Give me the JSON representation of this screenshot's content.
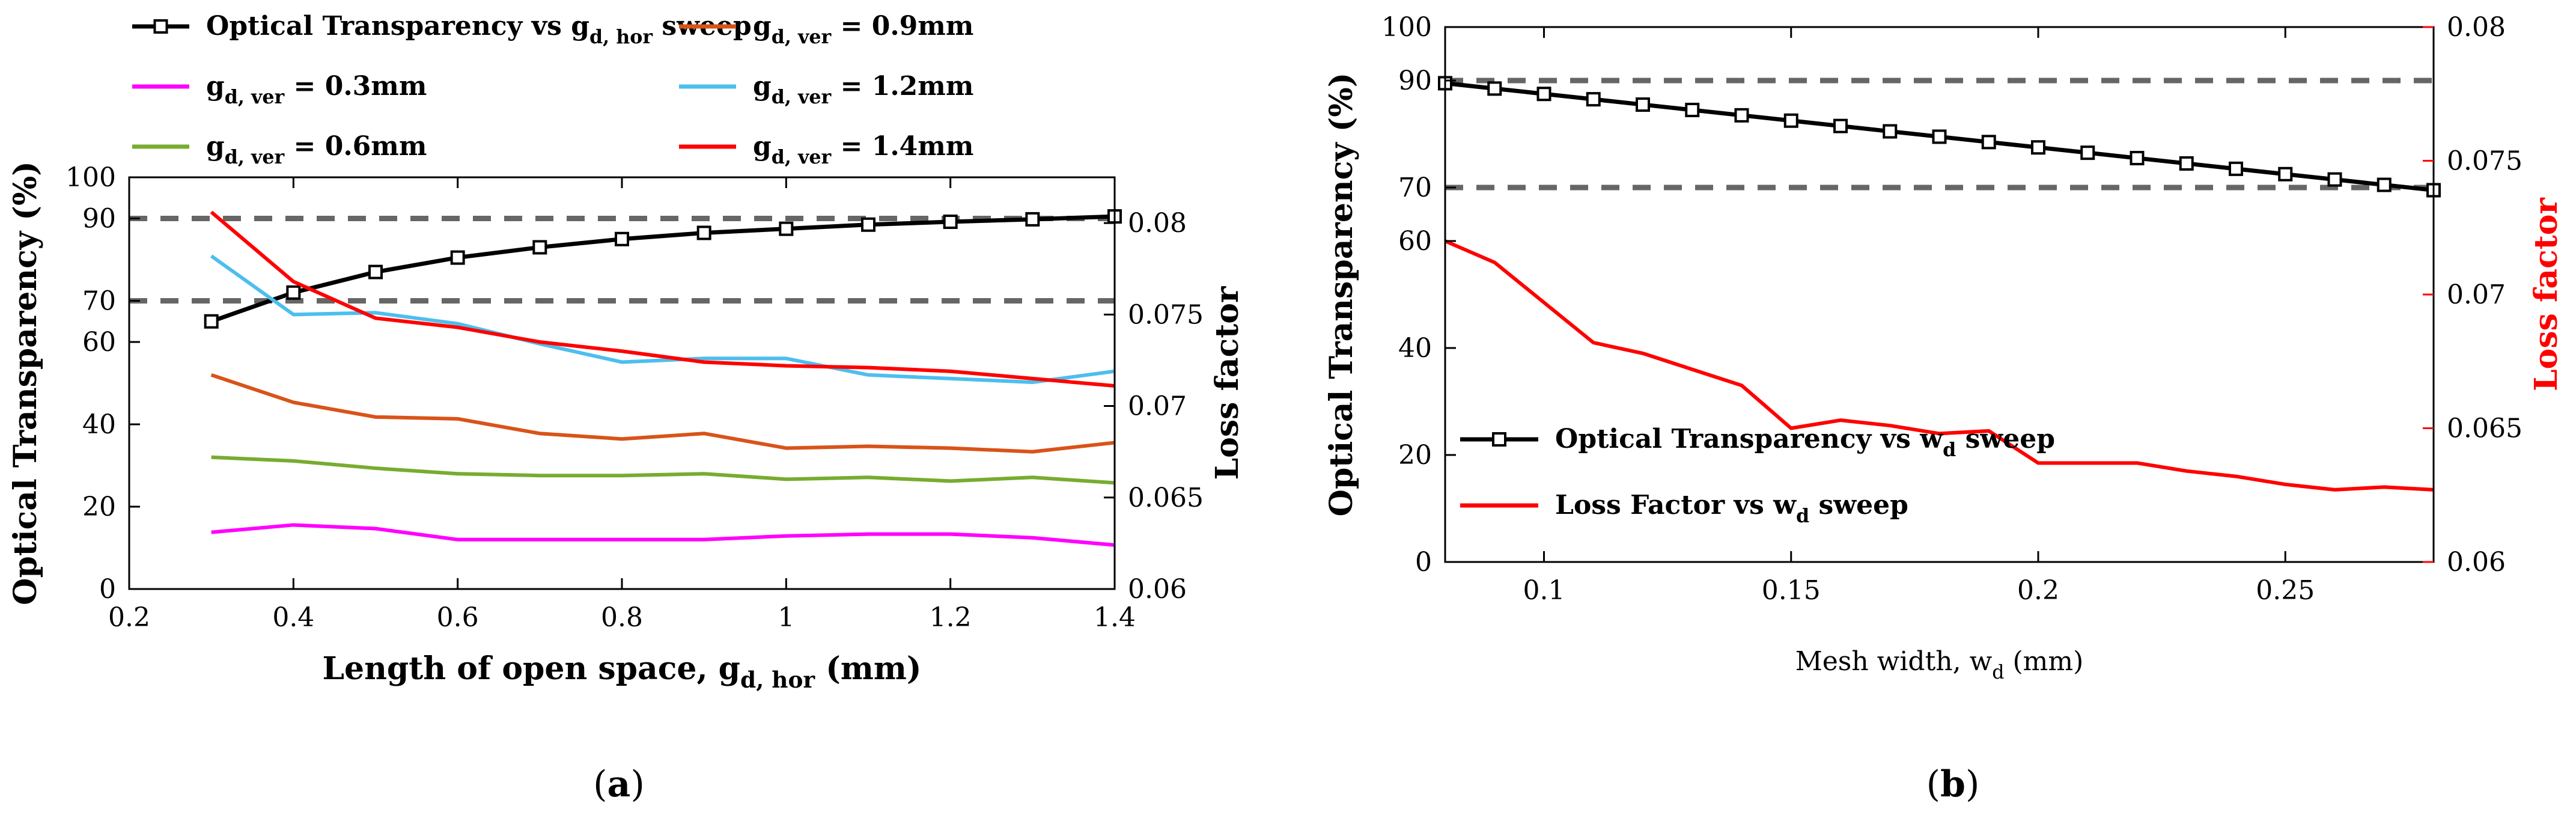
{
  "chart_data": [
    {
      "panel": "a",
      "type": "line",
      "panel_label": "(a)",
      "panel_letter": "a",
      "xlabel": {
        "pre": "Length of open space, g",
        "sub": "d, hor",
        "post": " (mm)"
      },
      "ylabel_left": "Optical Transparency (%)",
      "ylabel_right": "Loss factor",
      "xlim": [
        0.2,
        1.4
      ],
      "ylim_left": [
        0,
        100
      ],
      "ylim_right": [
        0.06,
        0.0825
      ],
      "x_ticks": [
        "0.2",
        "0.4",
        "0.6",
        "0.8",
        "1",
        "1.2",
        "1.4"
      ],
      "y_ticks_left": [
        "0",
        "20",
        "40",
        "60",
        "70",
        "90",
        "100"
      ],
      "y_ticks_right": [
        "0.06",
        "0.065",
        "0.07",
        "0.075",
        "0.08"
      ],
      "reference_lines": [
        90,
        70
      ],
      "legend": [
        {
          "pre": "Optical Transparency vs g",
          "sub": "d, hor",
          "post": " sweep",
          "color": "#000000",
          "marker": "square"
        },
        {
          "pre": "g",
          "sub": "d, ver",
          "post": " = 0.9mm",
          "color": "#d95319"
        },
        {
          "pre": "g",
          "sub": "d, ver",
          "post": " = 0.3mm",
          "color": "#ff00ff"
        },
        {
          "pre": "g",
          "sub": "d, ver",
          "post": " = 1.2mm",
          "color": "#4dbeee"
        },
        {
          "pre": "g",
          "sub": "d, ver",
          "post": " = 0.6mm",
          "color": "#77ac30"
        },
        {
          "pre": "g",
          "sub": "d, ver",
          "post": " = 1.4mm",
          "color": "#ff0000"
        }
      ],
      "x": [
        0.3,
        0.4,
        0.5,
        0.6,
        0.7,
        0.8,
        0.9,
        1.0,
        1.1,
        1.2,
        1.3,
        1.4
      ],
      "series": [
        {
          "name": "Optical Transparency vs g_d,hor sweep",
          "axis": "left",
          "color": "#000000",
          "marker": "square",
          "values": [
            65,
            72,
            77,
            80.5,
            83,
            85,
            86.5,
            87.5,
            88.5,
            89.2,
            89.8,
            90.5
          ]
        },
        {
          "name": "g_d,ver = 0.9mm",
          "axis": "right",
          "color": "#d95319",
          "values": [
            0.0717,
            0.0702,
            0.0694,
            0.0693,
            0.0685,
            0.0682,
            0.0685,
            0.0677,
            0.0678,
            0.0677,
            0.0675,
            0.068
          ]
        },
        {
          "name": "g_d,ver = 0.3mm",
          "axis": "right",
          "color": "#ff00ff",
          "values": [
            0.0631,
            0.0635,
            0.0633,
            0.0627,
            0.0627,
            0.0627,
            0.0627,
            0.0629,
            0.063,
            0.063,
            0.0628,
            0.0624
          ]
        },
        {
          "name": "g_d,ver = 1.2mm",
          "axis": "right",
          "color": "#4dbeee",
          "values": [
            0.0782,
            0.075,
            0.0751,
            0.0745,
            0.0734,
            0.0724,
            0.0726,
            0.0726,
            0.0717,
            0.0715,
            0.0713,
            0.0719
          ]
        },
        {
          "name": "g_d,ver = 0.6mm",
          "axis": "right",
          "color": "#77ac30",
          "values": [
            0.0672,
            0.067,
            0.0666,
            0.0663,
            0.0662,
            0.0662,
            0.0663,
            0.066,
            0.0661,
            0.0659,
            0.0661,
            0.0658
          ]
        },
        {
          "name": "g_d,ver = 1.4mm",
          "axis": "right",
          "color": "#ff0000",
          "values": [
            0.0806,
            0.0768,
            0.0748,
            0.0743,
            0.0735,
            0.073,
            0.0724,
            0.0722,
            0.0721,
            0.0719,
            0.0715,
            0.0711
          ]
        }
      ]
    },
    {
      "panel": "b",
      "type": "line",
      "panel_label": "(b)",
      "panel_letter": "b",
      "xlabel": {
        "pre": "Mesh width, w",
        "sub": "d",
        "post": " (mm)"
      },
      "ylabel_left": "Optical Transparency (%)",
      "ylabel_right": "Loss factor",
      "xlim": [
        0.08,
        0.28
      ],
      "ylim_left": [
        0,
        100
      ],
      "ylim_right": [
        0.06,
        0.08
      ],
      "x_ticks": [
        "0.1",
        "0.15",
        "0.2",
        "0.25"
      ],
      "y_ticks_left": [
        "0",
        "20",
        "40",
        "60",
        "70",
        "90",
        "100"
      ],
      "y_ticks_right": [
        "0.06",
        "0.065",
        "0.07",
        "0.075",
        "0.08"
      ],
      "reference_lines": [
        90,
        70
      ],
      "legend": [
        {
          "pre": "Optical Transparency vs w",
          "sub": "d",
          "post": " sweep",
          "color": "#000000",
          "marker": "square"
        },
        {
          "pre": "Loss Factor vs w",
          "sub": "d",
          "post": " sweep",
          "color": "#ff0000"
        }
      ],
      "x": [
        0.08,
        0.09,
        0.1,
        0.11,
        0.12,
        0.13,
        0.14,
        0.15,
        0.16,
        0.17,
        0.18,
        0.19,
        0.2,
        0.21,
        0.22,
        0.23,
        0.24,
        0.25,
        0.26,
        0.27,
        0.28
      ],
      "series": [
        {
          "name": "Optical Transparency vs w_d sweep",
          "axis": "left",
          "color": "#000000",
          "marker": "square",
          "values": [
            89.5,
            88.5,
            87.5,
            86.5,
            85.5,
            84.5,
            83.5,
            82.5,
            81.5,
            80.5,
            79.5,
            78.5,
            77.5,
            76.5,
            75.5,
            74.5,
            73.5,
            72.5,
            71.5,
            70.5,
            69.5
          ]
        },
        {
          "name": "Loss Factor vs w_d sweep",
          "axis": "right",
          "color": "#ff0000",
          "values": [
            0.072,
            0.0712,
            0.0697,
            0.0682,
            0.0678,
            0.0672,
            0.0666,
            0.065,
            0.0653,
            0.0651,
            0.0648,
            0.0649,
            0.0637,
            0.0637,
            0.0637,
            0.0634,
            0.0632,
            0.0629,
            0.0627,
            0.0628,
            0.0627
          ]
        }
      ]
    }
  ]
}
